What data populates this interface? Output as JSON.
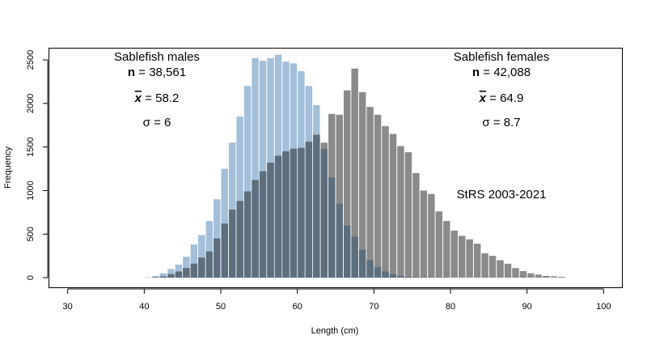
{
  "chart_data": {
    "type": "bar",
    "xlabel": "Length (cm)",
    "ylabel": "Frequency",
    "xlim": [
      27.5,
      102.5
    ],
    "ylim": [
      -120,
      2630
    ],
    "x_ticks": [
      "30",
      "40",
      "50",
      "60",
      "70",
      "80",
      "90",
      "100"
    ],
    "y_ticks": [
      "0",
      "500",
      "1000",
      "1500",
      "2000",
      "2500"
    ],
    "bin_width": 1,
    "overlay": "darker blend where the two histograms overlap",
    "colors": {
      "males": "#a3bfd9",
      "females": "#8a8a8a",
      "overlap": "#5d6e7d"
    },
    "series": [
      {
        "x": [
          40,
          41,
          42,
          43,
          44,
          45,
          46,
          47,
          48,
          49,
          50,
          51,
          52,
          53,
          54,
          55,
          56,
          57,
          58,
          59,
          60,
          61,
          62,
          63,
          64,
          65,
          66,
          67,
          68,
          69,
          70,
          71,
          72,
          73,
          74,
          75,
          76,
          77,
          78,
          79,
          80,
          81,
          82,
          83,
          84,
          85,
          86,
          87,
          88,
          89,
          90,
          91,
          92,
          93,
          94
        ],
        "values": [
          5,
          20,
          50,
          100,
          150,
          240,
          380,
          490,
          650,
          900,
          1250,
          1550,
          1850,
          2200,
          2520,
          2490,
          2520,
          2560,
          2480,
          2460,
          2370,
          2200,
          1980,
          1480,
          1150,
          850,
          600,
          470,
          320,
          200,
          120,
          70,
          40,
          20,
          10,
          6,
          4,
          2,
          1,
          1,
          0,
          0,
          0,
          0,
          0,
          0,
          0,
          0,
          0,
          0,
          0,
          0,
          0,
          0,
          0
        ]
      },
      {
        "x": [
          40,
          41,
          42,
          43,
          44,
          45,
          46,
          47,
          48,
          49,
          50,
          51,
          52,
          53,
          54,
          55,
          56,
          57,
          58,
          59,
          60,
          61,
          62,
          63,
          64,
          65,
          66,
          67,
          68,
          69,
          70,
          71,
          72,
          73,
          74,
          75,
          76,
          77,
          78,
          79,
          80,
          81,
          82,
          83,
          84,
          85,
          86,
          87,
          88,
          89,
          90,
          91,
          92,
          93,
          94
        ],
        "values": [
          0,
          5,
          15,
          40,
          70,
          110,
          160,
          230,
          300,
          450,
          620,
          780,
          880,
          990,
          1120,
          1220,
          1320,
          1400,
          1450,
          1480,
          1490,
          1560,
          1640,
          1550,
          1880,
          1870,
          2150,
          2400,
          2130,
          1960,
          1870,
          1740,
          1650,
          1510,
          1440,
          1200,
          1000,
          960,
          760,
          650,
          540,
          480,
          440,
          390,
          280,
          250,
          200,
          160,
          110,
          75,
          50,
          35,
          20,
          15,
          10
        ]
      }
    ]
  },
  "annotations": {
    "males_title": "Sablefish males",
    "males_n_label": "n",
    "males_n": "38,561",
    "males_mean_label": "x",
    "males_mean": "58.2",
    "males_sd_label": "σ",
    "males_sd": "6",
    "females_title": "Sablefish females",
    "females_n_label": "n",
    "females_n": "42,088",
    "females_mean_label": "x",
    "females_mean": "64.9",
    "females_sd_label": "σ",
    "females_sd": "8.7",
    "survey": "StRS 2003-2021"
  }
}
